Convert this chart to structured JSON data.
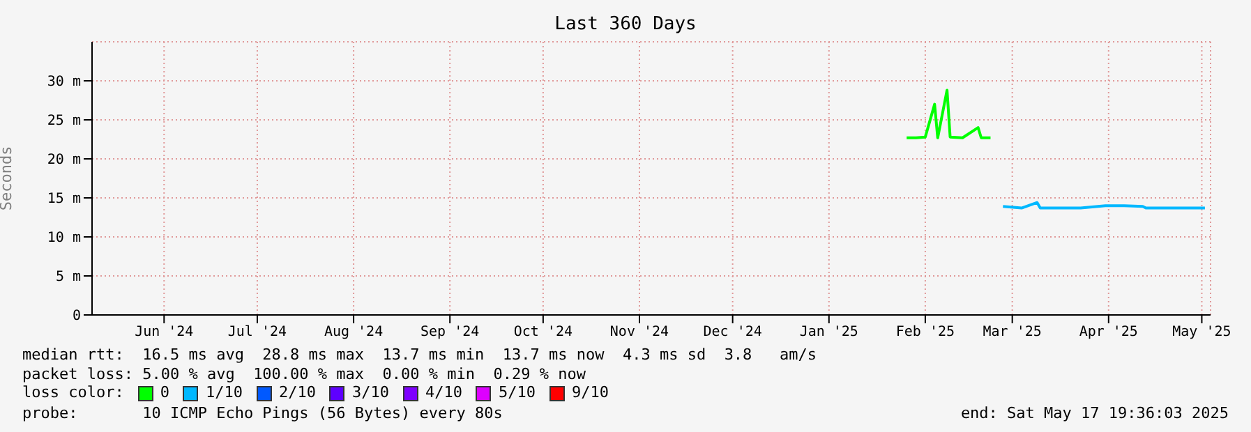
{
  "chart_data": {
    "type": "line",
    "title": "Last 360 Days",
    "ylabel": "Seconds",
    "xlim": [
      "2024-05-22T19:36",
      "2025-05-17T19:36"
    ],
    "xticks": [
      {
        "value": "2024-06-15",
        "label": "Jun '24"
      },
      {
        "value": "2024-07-15",
        "label": "Jul '24"
      },
      {
        "value": "2024-08-15",
        "label": "Aug '24"
      },
      {
        "value": "2024-09-15",
        "label": "Sep '24"
      },
      {
        "value": "2024-10-15",
        "label": "Oct '24"
      },
      {
        "value": "2024-11-15",
        "label": "Nov '24"
      },
      {
        "value": "2024-12-15",
        "label": "Dec '24"
      },
      {
        "value": "2025-01-15",
        "label": "Jan '25"
      },
      {
        "value": "2025-02-15",
        "label": "Feb '25"
      },
      {
        "value": "2025-03-15",
        "label": "Mar '25"
      },
      {
        "value": "2025-04-15",
        "label": "Apr '25"
      },
      {
        "value": "2025-05-15",
        "label": "May '25"
      }
    ],
    "ylim": [
      0,
      35
    ],
    "yticks": [
      0,
      {
        "value": 5,
        "label": "5 m"
      },
      {
        "value": 10,
        "label": "10 m"
      },
      {
        "value": 15,
        "label": "15 m"
      },
      {
        "value": 20,
        "label": "20 m"
      },
      {
        "value": 25,
        "label": "25 m"
      },
      {
        "value": 30,
        "label": "30 m"
      }
    ],
    "x": [
      "2025-02-09",
      "2025-02-12",
      "2025-02-15",
      "2025-02-18",
      "2025-02-19",
      "2025-02-22",
      "2025-02-23",
      "2025-02-27",
      "2025-03-04",
      "2025-03-05",
      "2025-03-08",
      "2025-03-12",
      "2025-03-18",
      "2025-03-23",
      "2025-03-24",
      "2025-03-30",
      "2025-04-06",
      "2025-04-14",
      "2025-04-20",
      "2025-04-26",
      "2025-04-27",
      "2025-05-05",
      "2025-05-16"
    ],
    "series": [
      {
        "name": "0",
        "color": "#00ff00",
        "values": [
          22.7,
          22.7,
          22.8,
          27,
          22.7,
          28.8,
          22.8,
          22.7,
          24,
          22.7,
          22.7,
          null,
          null,
          null,
          null,
          null,
          null,
          null,
          null,
          null,
          null,
          null,
          null
        ]
      },
      {
        "name": "1/10",
        "color": "#00b8ff",
        "values": [
          null,
          null,
          null,
          null,
          null,
          null,
          null,
          null,
          null,
          null,
          null,
          13.9,
          13.7,
          14.4,
          13.7,
          13.7,
          13.7,
          14,
          14,
          13.9,
          13.7,
          13.7,
          13.7
        ]
      },
      {
        "name": "2/10",
        "color": "#0059ff",
        "values": [
          null,
          null,
          null,
          null,
          null,
          null,
          null,
          null,
          null,
          null,
          null,
          null,
          null,
          null,
          null,
          null,
          null,
          null,
          null,
          null,
          null,
          null,
          null
        ]
      },
      {
        "name": "3/10",
        "color": "#5e00ff",
        "values": [
          null,
          null,
          null,
          null,
          null,
          null,
          null,
          null,
          null,
          null,
          null,
          null,
          null,
          null,
          null,
          null,
          null,
          null,
          null,
          null,
          null,
          null,
          null
        ]
      },
      {
        "name": "4/10",
        "color": "#7e00ff",
        "values": [
          null,
          null,
          null,
          null,
          null,
          null,
          null,
          null,
          null,
          null,
          null,
          null,
          null,
          null,
          null,
          null,
          null,
          null,
          null,
          null,
          null,
          null,
          null
        ]
      },
      {
        "name": "5/10",
        "color": "#dd00ff",
        "values": [
          null,
          null,
          null,
          null,
          null,
          null,
          null,
          null,
          null,
          null,
          null,
          null,
          null,
          null,
          null,
          null,
          null,
          null,
          null,
          null,
          null,
          null,
          null
        ]
      },
      {
        "name": "9/10",
        "color": "#ff0000",
        "values": [
          null,
          null,
          null,
          null,
          null,
          null,
          null,
          null,
          null,
          null,
          null,
          null,
          null,
          null,
          null,
          null,
          null,
          null,
          null,
          null,
          null,
          null,
          null
        ]
      }
    ],
    "legend_title": "loss color:",
    "legend": "bottom",
    "grid": true,
    "marker": "none",
    "line_style": "solid",
    "annotations": [
      "median rtt:  16.5 ms avg  28.8 ms max  13.7 ms min  13.7 ms now  4.3 ms sd  3.8   am/s",
      "packet loss: 5.00 % avg  100.00 % max  0.00 % min  0.29 % now",
      "probe:       10 ICMP Echo Pings (56 Bytes) every 80s",
      "end: Sat May 17 19:36:03 2025"
    ]
  }
}
